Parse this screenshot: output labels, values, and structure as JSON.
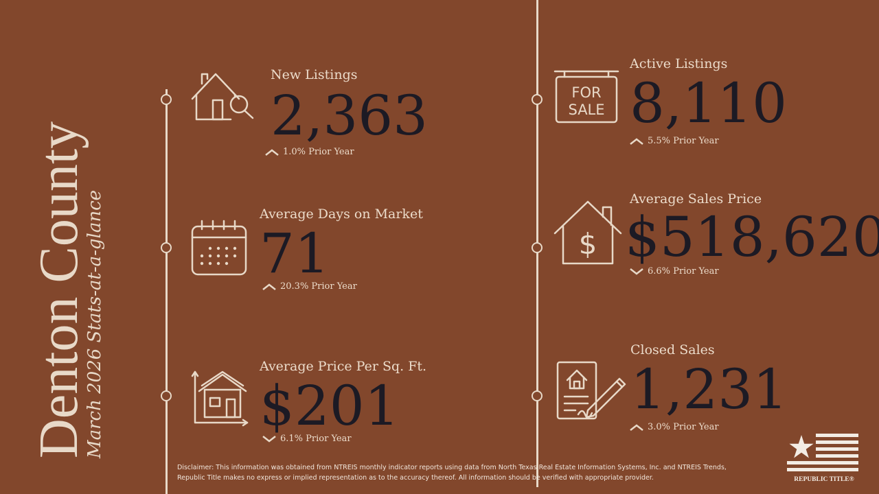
{
  "title": "Denton County",
  "subtitle": "March 2026 Stats-at-a-glance",
  "stats": {
    "new_listings": {
      "label": "New Listings",
      "value": "2,363",
      "change": "1.0% Prior Year",
      "direction": "up",
      "icon": "house-search-icon"
    },
    "avg_days": {
      "label": "Average Days on Market",
      "value": "71",
      "change": "20.3% Prior Year",
      "direction": "up",
      "icon": "calendar-icon"
    },
    "avg_price_sqft": {
      "label": "Average Price Per Sq. Ft.",
      "value": "$201",
      "change": "6.1% Prior Year",
      "direction": "down",
      "icon": "house-growth-chart-icon"
    },
    "active_listings": {
      "label": "Active Listings",
      "value": "8,110",
      "change": "5.5% Prior Year",
      "direction": "up",
      "icon": "for-sale-sign-icon"
    },
    "avg_sales_price": {
      "label": "Average Sales Price",
      "value": "$518,620",
      "change": "6.6% Prior Year",
      "direction": "down",
      "icon": "house-dollar-icon"
    },
    "closed_sales": {
      "label": "Closed Sales",
      "value": "1,231",
      "change": "3.0% Prior Year",
      "direction": "up",
      "icon": "signed-contract-icon"
    }
  },
  "for_sale_sign": {
    "line1": "FOR",
    "line2": "SALE"
  },
  "disclaimer": "Disclaimer: This information was obtained from NTREIS monthly indicator reports using data from North Texas Real Estate Information Systems, Inc. and NTREIS Trends, Republic Title makes no express or implied representation as to the accuracy thereof. All information should be verified with appropriate provider.",
  "logo": {
    "text": "REPUBLIC TITLE®",
    "icon": "republic-title-flag-logo"
  },
  "colors": {
    "background": "#82472c",
    "accent": "#e8d9c8",
    "value": "#1c1a24"
  }
}
